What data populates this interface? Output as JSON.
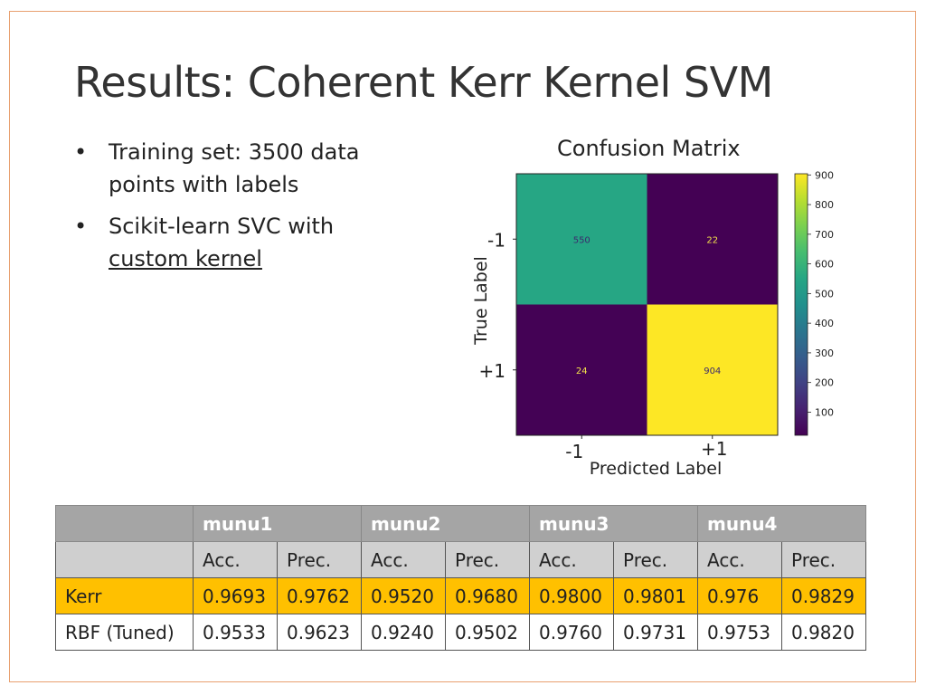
{
  "slide": {
    "title": "Results: Coherent Kerr Kernel SVM",
    "bullets": [
      {
        "marker": "•",
        "text": "Training set: 3500 data points with labels",
        "underline": false
      },
      {
        "marker": "•",
        "text": "Scikit-learn SVC with",
        "text2": "custom kernel",
        "underline": true
      }
    ]
  },
  "chart_data": {
    "type": "heatmap",
    "title": "Confusion Matrix",
    "xlabel": "Predicted Label",
    "ylabel": "True Label",
    "x_categories": [
      "-1",
      "+1"
    ],
    "y_categories": [
      "-1",
      "+1"
    ],
    "values": [
      [
        550,
        22
      ],
      [
        24,
        904
      ]
    ],
    "colormap": "viridis",
    "colorbar": {
      "ticks": [
        900,
        800,
        700,
        600,
        500,
        400,
        300,
        200,
        100
      ],
      "range": [
        22,
        904
      ]
    }
  },
  "table": {
    "groups": [
      "munu1",
      "munu2",
      "munu3",
      "munu4"
    ],
    "metrics": [
      "Acc.",
      "Prec."
    ],
    "rows": [
      {
        "label": "Kerr",
        "values": [
          "0.9693",
          "0.9762",
          "0.9520",
          "0.9680",
          "0.9800",
          "0.9801",
          "0.976",
          "0.9829"
        ],
        "highlight": "#ffc000"
      },
      {
        "label": "RBF (Tuned)",
        "values": [
          "0.9533",
          "0.9623",
          "0.9240",
          "0.9502",
          "0.9760",
          "0.9731",
          "0.9753",
          "0.9820"
        ]
      }
    ]
  },
  "colors": {
    "frame": "#e8a070",
    "header": "#a5a5a5",
    "subheader": "#d0d0d0",
    "kerr_row": "#ffc000"
  }
}
